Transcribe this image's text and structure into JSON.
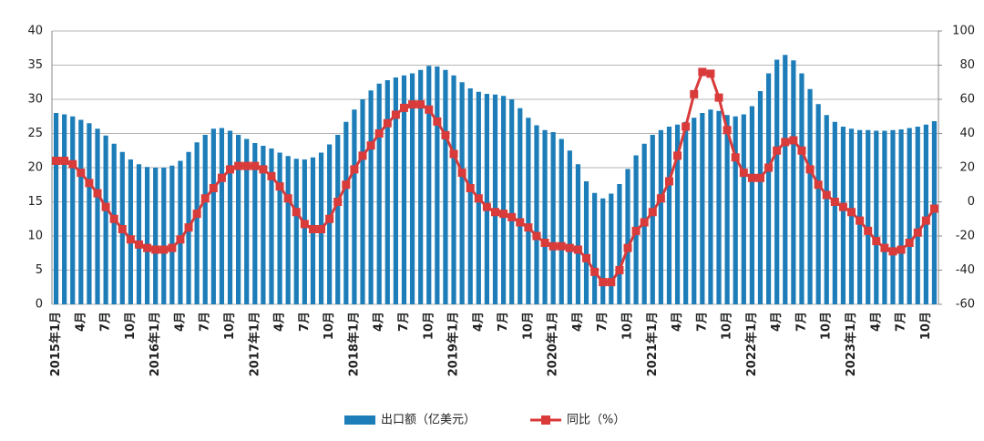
{
  "chart_data": {
    "type": "bar-line",
    "categories": [
      "2015年1月",
      null,
      null,
      "4月",
      null,
      null,
      "7月",
      null,
      null,
      "10月",
      null,
      null,
      "2016年1月",
      null,
      null,
      "4月",
      null,
      null,
      "7月",
      null,
      null,
      "10月",
      null,
      null,
      "2017年1月",
      null,
      null,
      "4月",
      null,
      null,
      "7月",
      null,
      null,
      "10月",
      null,
      null,
      "2018年1月",
      null,
      null,
      "4月",
      null,
      null,
      "7月",
      null,
      null,
      "10月",
      null,
      null,
      "2019年1月",
      null,
      null,
      "4月",
      null,
      null,
      "7月",
      null,
      null,
      "10月",
      null,
      null,
      "2020年1月",
      null,
      null,
      "4月",
      null,
      null,
      "7月",
      null,
      null,
      "10月",
      null,
      null,
      "2021年1月",
      null,
      null,
      "4月",
      null,
      null,
      "7月",
      null,
      null,
      "10月",
      null,
      null,
      "2022年1月",
      null,
      null,
      "4月",
      null,
      null,
      "7月",
      null,
      null,
      "10月",
      null,
      null,
      "2023年1月",
      null,
      null,
      "4月",
      null,
      null,
      "7月",
      null,
      null,
      "10月",
      null
    ],
    "series": [
      {
        "name": "出口额（亿美元）",
        "type": "bar",
        "color": "#1c7db8",
        "values": [
          28,
          27.8,
          27.5,
          27,
          26.5,
          25.7,
          24.7,
          23.5,
          22.3,
          21.2,
          20.5,
          20.1,
          20,
          20,
          20.3,
          21,
          22.3,
          23.7,
          24.8,
          25.7,
          25.8,
          25.4,
          24.8,
          24.2,
          23.6,
          23.2,
          22.8,
          22.2,
          21.7,
          21.3,
          21.2,
          21.5,
          22.2,
          23.4,
          24.8,
          26.7,
          28.5,
          30,
          31.3,
          32.3,
          32.8,
          33.2,
          33.5,
          33.8,
          34.3,
          34.9,
          34.8,
          34.3,
          33.5,
          32.5,
          31.6,
          31.1,
          30.8,
          30.7,
          30.5,
          30,
          28.7,
          27.3,
          26.2,
          25.5,
          25.2,
          24.2,
          22.5,
          20.5,
          18,
          16.3,
          15.5,
          16.2,
          17.6,
          19.8,
          21.8,
          23.5,
          24.8,
          25.5,
          26,
          26.3,
          26.7,
          27.3,
          28,
          28.5,
          28.3,
          27.7,
          27.5,
          27.8,
          29,
          31.2,
          33.8,
          35.8,
          36.5,
          35.7,
          33.8,
          31.5,
          29.3,
          27.7,
          26.7,
          26,
          25.7,
          25.5,
          25.5,
          25.4,
          25.4,
          25.5,
          25.6,
          25.8,
          26,
          26.3,
          26.8
        ]
      },
      {
        "name": "同比（%）",
        "type": "line",
        "axis": "y2",
        "color": "#d93a3a",
        "values": [
          24,
          24,
          22,
          17,
          11,
          5,
          -3,
          -10,
          -16,
          -22,
          -25,
          -27,
          -28,
          -28,
          -27,
          -22,
          -15,
          -7,
          2,
          8,
          14,
          19,
          21,
          21,
          21,
          19,
          15,
          9,
          2,
          -6,
          -13,
          -16,
          -16,
          -10,
          0,
          10,
          19,
          27,
          33,
          40,
          46,
          51,
          55,
          57,
          57,
          54,
          47,
          39,
          28,
          17,
          8,
          2,
          -3,
          -6,
          -7,
          -9,
          -12,
          -15,
          -20,
          -24,
          -26,
          -26,
          -27,
          -28,
          -33,
          -41,
          -47,
          -47,
          -40,
          -27,
          -17,
          -12,
          -6,
          2,
          12,
          27,
          44,
          63,
          76,
          75,
          61,
          42,
          26,
          17,
          14,
          14,
          20,
          30,
          35,
          36,
          30,
          19,
          10,
          4,
          0,
          -3,
          -6,
          -11,
          -17,
          -23,
          -27,
          -29,
          -28,
          -24,
          -18,
          -11,
          -4
        ]
      }
    ],
    "ylim": [
      0,
      40
    ],
    "yticks": [
      0,
      5,
      10,
      15,
      20,
      25,
      30,
      35,
      40
    ],
    "y2lim": [
      -60,
      100
    ],
    "y2ticks": [
      -60,
      -40,
      -20,
      0,
      20,
      40,
      60,
      80,
      100
    ],
    "grid": true,
    "legend": "bottom"
  }
}
